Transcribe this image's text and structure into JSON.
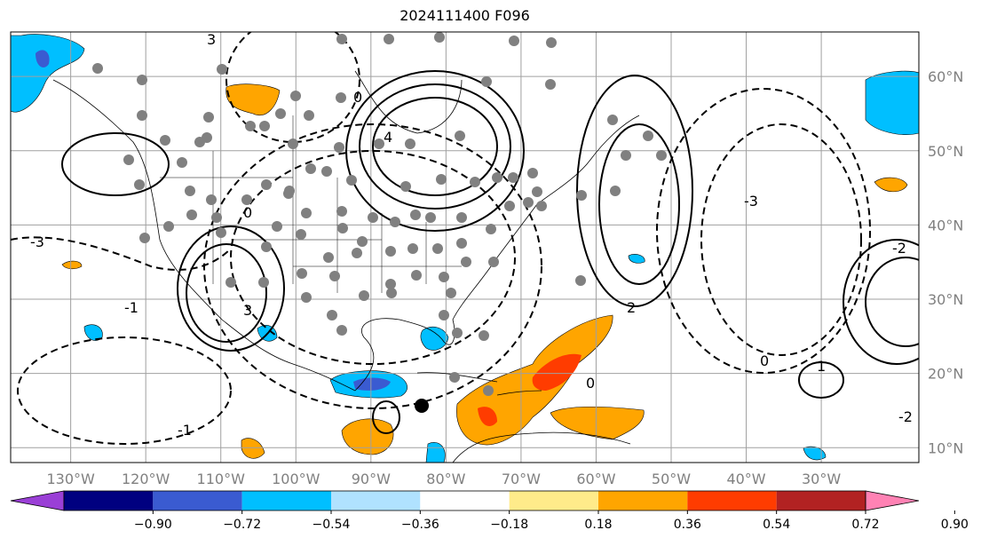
{
  "title": "2024111400 F096",
  "map": {
    "lon_range": [
      -138,
      -17
    ],
    "lat_range": [
      8,
      66
    ],
    "lon_ticks": [
      {
        "value": -130,
        "label": "130°W"
      },
      {
        "value": -120,
        "label": "120°W"
      },
      {
        "value": -110,
        "label": "110°W"
      },
      {
        "value": -100,
        "label": "100°W"
      },
      {
        "value": -90,
        "label": "90°W"
      },
      {
        "value": -80,
        "label": "80°W"
      },
      {
        "value": -70,
        "label": "70°W"
      },
      {
        "value": -60,
        "label": "60°W"
      },
      {
        "value": -50,
        "label": "50°W"
      },
      {
        "value": -40,
        "label": "40°W"
      },
      {
        "value": -30,
        "label": "30°W"
      }
    ],
    "lat_ticks": [
      {
        "value": 60,
        "label": "60°N"
      },
      {
        "value": 50,
        "label": "50°N"
      },
      {
        "value": 40,
        "label": "40°N"
      },
      {
        "value": 30,
        "label": "30°N"
      },
      {
        "value": 20,
        "label": "20°N"
      },
      {
        "value": 10,
        "label": "10°N"
      }
    ],
    "grid": true,
    "tick_label_color": "#808080"
  },
  "colorbar": {
    "ticks": [
      "−0.90",
      "−0.72",
      "−0.54",
      "−0.36",
      "−0.18",
      "0.18",
      "0.36",
      "0.54",
      "0.72",
      "0.90"
    ],
    "colors": [
      "#9a3fd6",
      "#000080",
      "#3a5bd1",
      "#00bfff",
      "#b0e2ff",
      "#ffffff",
      "#ffeb8a",
      "#ffa500",
      "#ff3c00",
      "#b22222",
      "#ff82b4"
    ],
    "extend": "both"
  },
  "contour_labels": [
    "-3",
    "-2",
    "-1",
    "0",
    "1",
    "2",
    "3",
    "4"
  ],
  "markers": {
    "point_color": "#808080",
    "highlight_color": "#000000"
  }
}
